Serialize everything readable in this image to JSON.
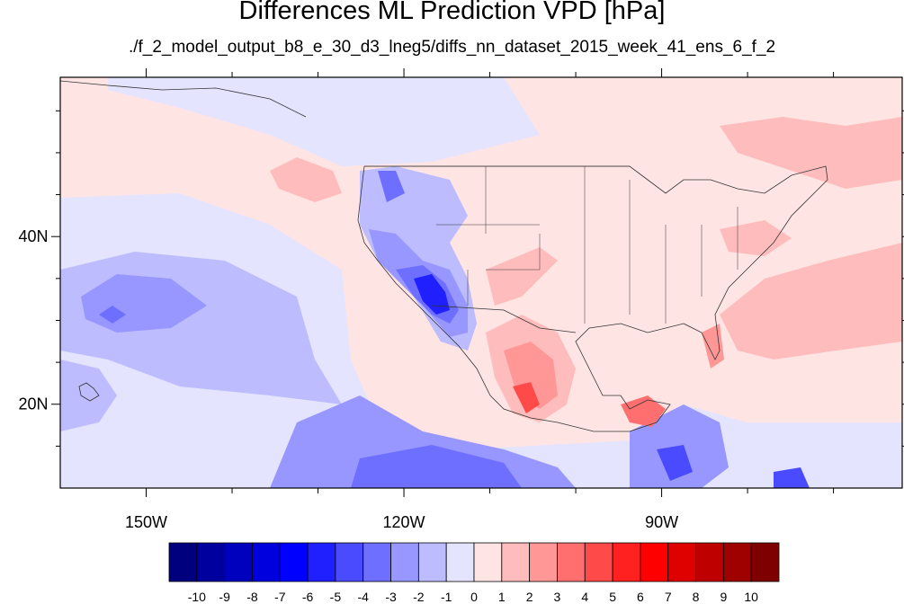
{
  "title": "Differences ML Prediction VPD [hPa]",
  "subtitle": "./f_2_model_output_b8_e_30_d3_lneg5/diffs_nn_dataset_2015_week_41_ens_6_f_2",
  "map": {
    "lon_range": [
      -160,
      -62
    ],
    "lat_range": [
      10,
      59
    ],
    "x_ticks": [
      {
        "lon": -150,
        "label": "150W"
      },
      {
        "lon": -120,
        "label": "120W"
      },
      {
        "lon": -90,
        "label": "90W"
      }
    ],
    "y_ticks": [
      {
        "lat": 40,
        "label": "40N"
      },
      {
        "lat": 20,
        "label": "20N"
      }
    ]
  },
  "colorbar": {
    "labels": [
      "-10",
      "-9",
      "-8",
      "-7",
      "-6",
      "-5",
      "-4",
      "-3",
      "-2",
      "-1",
      "0",
      "1",
      "2",
      "3",
      "4",
      "5",
      "6",
      "7",
      "8",
      "9",
      "10"
    ],
    "colors": [
      "#00007f",
      "#00009f",
      "#0000bf",
      "#0000df",
      "#0000ff",
      "#2020ff",
      "#4a4aff",
      "#6f6fff",
      "#9797ff",
      "#bcbcff",
      "#e4e4ff",
      "#ffe4e4",
      "#ffbcbc",
      "#ff9797",
      "#ff6f6f",
      "#ff4a4a",
      "#ff2020",
      "#ff0000",
      "#df0000",
      "#bf0000",
      "#9f0000",
      "#7f0000"
    ]
  }
}
